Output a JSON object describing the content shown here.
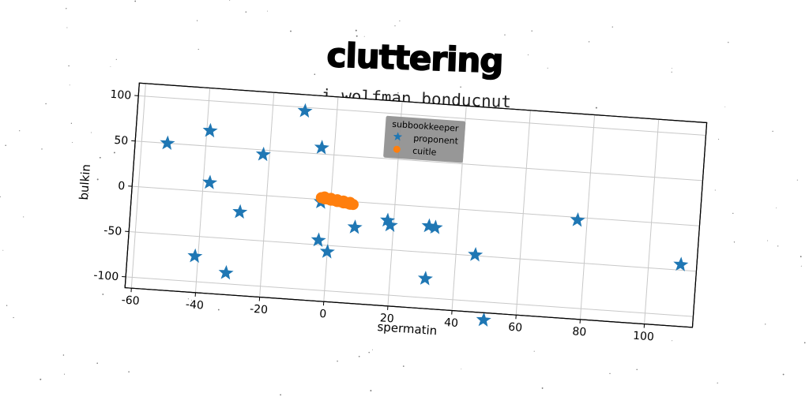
{
  "chart_data": {
    "type": "scatter",
    "title": "cluttering",
    "subtitle": "i wolfman bonducnut",
    "xlabel": "spermatin",
    "ylabel": "bulkin",
    "xlim": [
      -62,
      115
    ],
    "ylim": [
      -112,
      114
    ],
    "x_ticks": [
      -60,
      -40,
      -20,
      0,
      20,
      40,
      60,
      80,
      100
    ],
    "y_ticks": [
      -100,
      -50,
      0,
      50,
      100
    ],
    "grid": true,
    "legend": {
      "title": "subbookkeeper",
      "placement": "top-center",
      "entries": [
        "proponent",
        "cuitle"
      ]
    },
    "series": [
      {
        "name": "proponent",
        "marker": "star",
        "color": "#1f77b4",
        "x": [
          -52,
          -39,
          -38,
          -28,
          -22,
          -10,
          -4,
          -3,
          -3,
          0,
          8,
          18,
          19,
          31,
          33,
          46,
          50,
          31,
          77,
          110,
          -41,
          -31
        ],
        "y": [
          50,
          67,
          10,
          -20,
          45,
          96,
          57,
          -3,
          -45,
          -57,
          -28,
          -18,
          -23,
          -21,
          -22,
          -49,
          -120,
          -79,
          -3,
          -44,
          -72,
          -88
        ]
      },
      {
        "name": "cuitle",
        "marker": "circle",
        "color": "#ff7f0e",
        "x": [
          -3,
          -2,
          -1,
          0,
          1,
          2,
          3,
          4,
          5,
          6,
          7,
          -2,
          0,
          2,
          4,
          6
        ],
        "y": [
          2,
          1,
          1,
          0,
          0,
          -1,
          -1,
          -2,
          -2,
          -3,
          -3,
          3,
          2,
          1,
          0,
          -1
        ]
      }
    ]
  }
}
